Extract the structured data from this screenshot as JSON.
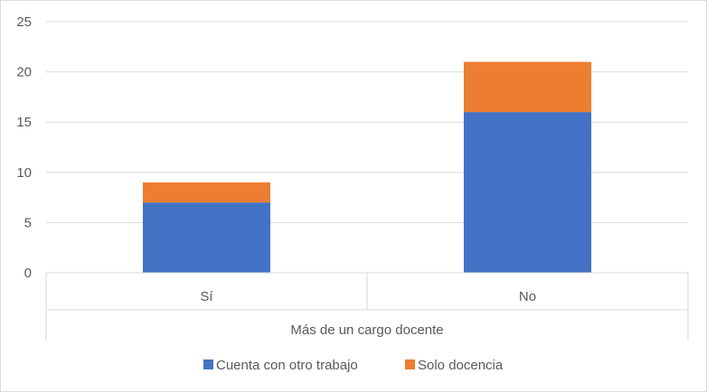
{
  "chart_data": {
    "type": "bar",
    "stacked": true,
    "categories": [
      "Sí",
      "No"
    ],
    "series": [
      {
        "name": "Cuenta con otro trabajo",
        "values": [
          7,
          16
        ],
        "color": "#4472C4"
      },
      {
        "name": "Solo docencia",
        "values": [
          2,
          5
        ],
        "color": "#ED7D31"
      }
    ],
    "group_title": "Más de un cargo docente",
    "ylim": [
      0,
      25
    ],
    "yticks": [
      0,
      5,
      10,
      15,
      20,
      25
    ],
    "grid": true,
    "legend": "bottom"
  }
}
